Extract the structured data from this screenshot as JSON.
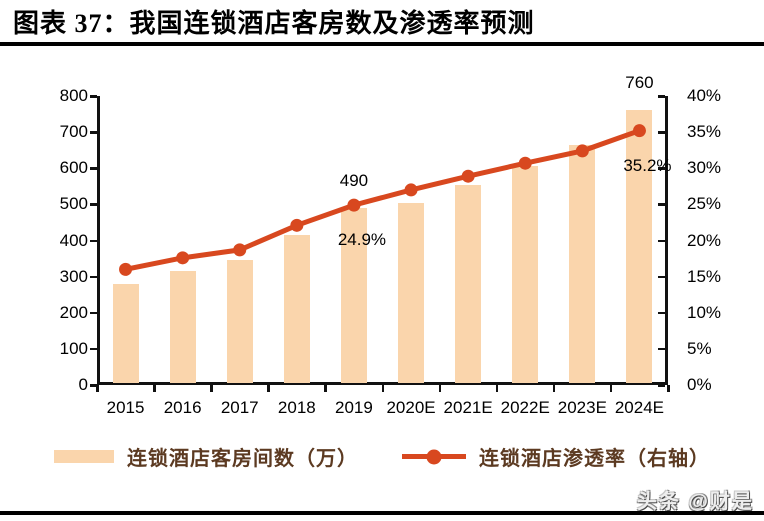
{
  "page": {
    "title": "图表 37：我国连锁酒店客房数及渗透率预测",
    "watermark": "头条 @财是"
  },
  "colors": {
    "bar_fill": "#FAD5AC",
    "line": "#D8481F",
    "axis": "#111111",
    "legend_text": "#5C3A21",
    "label_text": "#000000"
  },
  "chart_data": {
    "type": "bar",
    "subtype": "bar-line-combo",
    "title": "我国连锁酒店客房数及渗透率预测",
    "categories": [
      "2015",
      "2016",
      "2017",
      "2018",
      "2019",
      "2020E",
      "2021E",
      "2022E",
      "2023E",
      "2024E"
    ],
    "series": [
      {
        "name": "连锁酒店客房间数（万）",
        "type": "bar",
        "axis": "left",
        "color": "#FAD5AC",
        "values": [
          280,
          315,
          345,
          415,
          490,
          505,
          555,
          605,
          665,
          760
        ]
      },
      {
        "name": "连锁酒店渗透率（右轴）",
        "type": "line",
        "axis": "right",
        "color": "#D8481F",
        "values": [
          16.0,
          17.6,
          18.7,
          22.1,
          24.9,
          27.0,
          28.9,
          30.7,
          32.4,
          35.2
        ]
      }
    ],
    "left_axis": {
      "min": 0,
      "max": 800,
      "step": 100,
      "tick_labels": [
        "0",
        "100",
        "200",
        "300",
        "400",
        "500",
        "600",
        "700",
        "800"
      ]
    },
    "right_axis": {
      "min": 0,
      "max": 40,
      "step": 5,
      "tick_labels": [
        "0%",
        "5%",
        "10%",
        "15%",
        "20%",
        "25%",
        "30%",
        "35%",
        "40%"
      ]
    },
    "data_labels": [
      {
        "series": 0,
        "index": 4,
        "text": "490"
      },
      {
        "series": 1,
        "index": 4,
        "text": "24.9%"
      },
      {
        "series": 0,
        "index": 9,
        "text": "760"
      },
      {
        "series": 1,
        "index": 9,
        "text": "35.2%"
      }
    ],
    "legend": {
      "position": "bottom",
      "items": [
        "连锁酒店客房间数（万）",
        "连锁酒店渗透率（右轴）"
      ]
    },
    "grid": false
  }
}
